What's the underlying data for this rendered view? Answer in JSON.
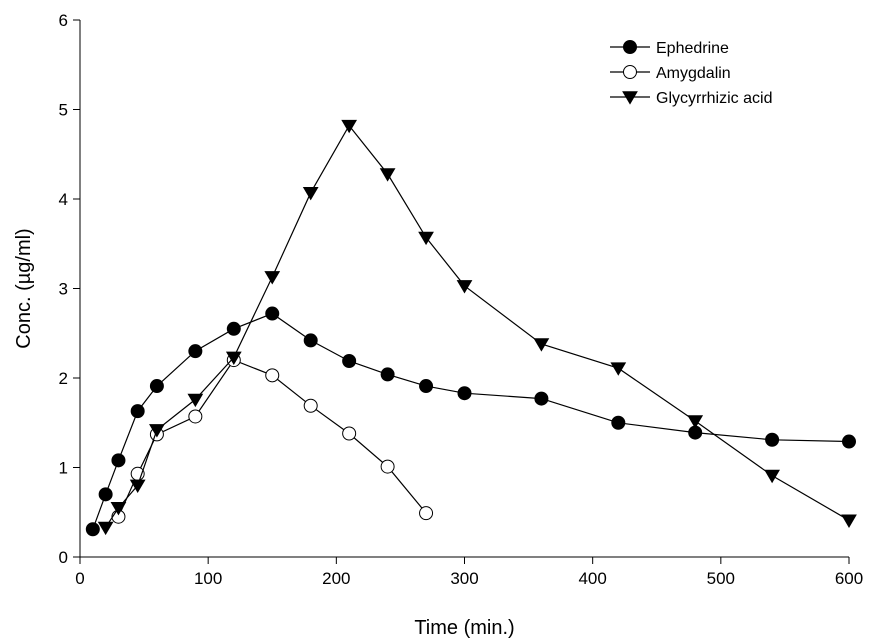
{
  "chart_data": {
    "type": "line",
    "title": "",
    "xlabel": "Time (min.)",
    "ylabel": "Conc. (µg/ml)",
    "xlim": [
      0,
      600
    ],
    "ylim": [
      0,
      6
    ],
    "xticks": [
      0,
      100,
      200,
      300,
      400,
      500,
      600
    ],
    "yticks": [
      0,
      1,
      2,
      3,
      4,
      5,
      6
    ],
    "grid": false,
    "legend_position": "top-right",
    "series": [
      {
        "name": "Ephedrine",
        "marker": "filled-circle",
        "color": "#000000",
        "x": [
          10,
          20,
          30,
          45,
          60,
          90,
          120,
          150,
          180,
          210,
          240,
          270,
          300,
          360,
          420,
          480,
          540,
          600
        ],
        "y": [
          0.31,
          0.7,
          1.08,
          1.63,
          1.91,
          2.3,
          2.55,
          2.72,
          2.42,
          2.19,
          2.04,
          1.91,
          1.83,
          1.77,
          1.5,
          1.39,
          1.31,
          1.29
        ]
      },
      {
        "name": "Amygdalin",
        "marker": "open-circle",
        "color": "#000000",
        "x": [
          30,
          45,
          60,
          90,
          120,
          150,
          180,
          210,
          240,
          270
        ],
        "y": [
          0.45,
          0.93,
          1.37,
          1.57,
          2.2,
          2.03,
          1.69,
          1.38,
          1.01,
          0.49
        ]
      },
      {
        "name": "Glycyrrhizic acid",
        "marker": "filled-triangle-down",
        "color": "#000000",
        "x": [
          20,
          30,
          45,
          60,
          90,
          120,
          150,
          180,
          210,
          240,
          270,
          300,
          360,
          420,
          480,
          540,
          600
        ],
        "y": [
          0.33,
          0.55,
          0.8,
          1.42,
          1.76,
          2.23,
          3.13,
          4.07,
          4.82,
          4.28,
          3.57,
          3.03,
          2.38,
          2.11,
          1.52,
          0.91,
          0.41
        ]
      }
    ]
  }
}
